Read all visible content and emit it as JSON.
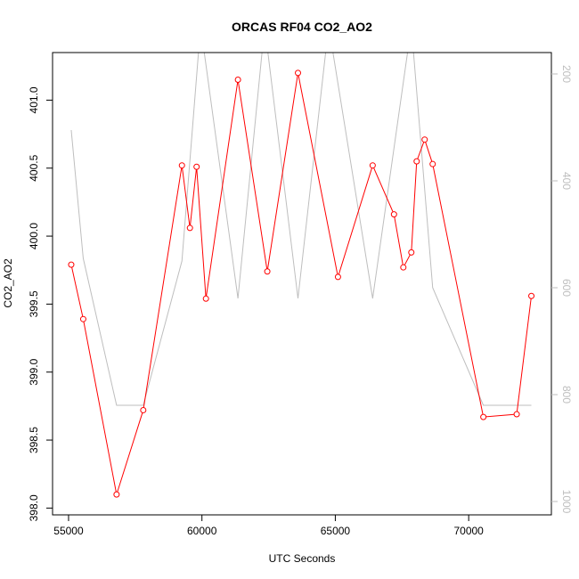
{
  "chart_data": {
    "type": "line",
    "title": "ORCAS RF04 CO2_AO2",
    "xlabel": "UTC Seconds",
    "ylabel": "CO2_AO2",
    "xlim": [
      54400,
      73100
    ],
    "ylim": [
      397.95,
      401.35
    ],
    "y2lim": [
      1025,
      160
    ],
    "grid": false,
    "legend": "none",
    "x_ticks": [
      55000,
      60000,
      65000,
      70000
    ],
    "y_ticks": [
      398.0,
      398.5,
      399.0,
      399.5,
      400.0,
      400.5,
      401.0
    ],
    "y2_ticks": [
      200,
      400,
      600,
      800,
      1000
    ],
    "x_tick_labels": [
      "55000",
      "60000",
      "65000",
      "70000"
    ],
    "y_tick_labels": [
      "398.0",
      "398.5",
      "399.0",
      "399.5",
      "400.0",
      "400.5",
      "401.0"
    ],
    "y2_tick_labels": [
      "200",
      "400",
      "600",
      "800",
      "1000"
    ],
    "colors": {
      "co2": "#ff0000",
      "altitude": "#bebebe"
    },
    "series": [
      {
        "axis": "left",
        "x": [
          55100,
          55550,
          56800,
          57800,
          59250,
          59550,
          59800,
          60150,
          61350,
          62450,
          63600,
          65100,
          66400,
          67200,
          67550,
          67850,
          68050,
          68350,
          68650,
          70550,
          71800,
          72350
        ],
        "y": [
          399.79,
          399.39,
          398.1,
          398.72,
          400.52,
          400.06,
          400.51,
          399.54,
          401.15,
          399.74,
          401.2,
          399.7,
          400.52,
          400.16,
          399.77,
          399.88,
          400.55,
          400.71,
          400.53,
          398.67,
          398.69,
          399.56
        ]
      },
      {
        "axis": "right",
        "x": [
          55100,
          55550,
          56800,
          57800,
          59250,
          59950,
          61350,
          62350,
          63600,
          64750,
          66400,
          67850,
          68650,
          70550,
          72350
        ],
        "y": [
          305,
          545,
          820,
          820,
          550,
          110,
          620,
          110,
          620,
          110,
          620,
          110,
          600,
          820,
          820
        ]
      }
    ]
  }
}
